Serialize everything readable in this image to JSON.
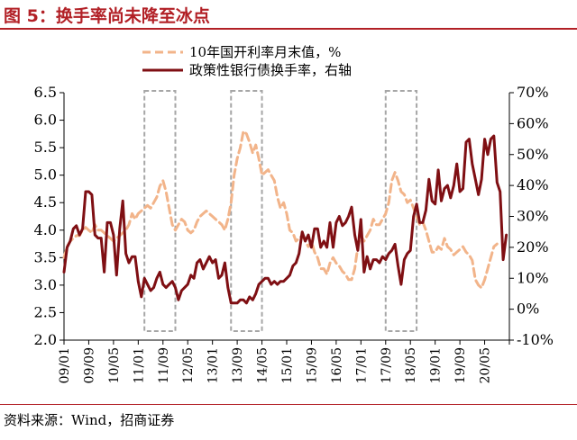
{
  "figure_title": "图 5：换手率尚未降至冰点",
  "source": "资料来源：Wind，招商证券",
  "colors": {
    "bond_yield": "#f2b48a",
    "turnover": "#7f0f13",
    "brand": "#b22026",
    "box": "#a6a6a6"
  },
  "chart_data": {
    "type": "line",
    "title": "",
    "xlabel": "",
    "ylabel_left": "",
    "ylabel_right": "",
    "x_ticks": [
      "09/01",
      "09/09",
      "10/05",
      "11/01",
      "11/09",
      "12/05",
      "13/01",
      "13/09",
      "14/05",
      "15/01",
      "15/09",
      "16/05",
      "17/01",
      "17/09",
      "18/05",
      "19/01",
      "19/09",
      "20/05"
    ],
    "y_left": {
      "min": 2.0,
      "max": 6.5,
      "ticks": [
        "2.0",
        "2.5",
        "3.0",
        "3.5",
        "4.0",
        "4.5",
        "5.0",
        "5.5",
        "6.0",
        "6.5"
      ]
    },
    "y_right": {
      "min": -10,
      "max": 70,
      "ticks": [
        "-10%",
        "0%",
        "10%",
        "20%",
        "30%",
        "40%",
        "50%",
        "60%",
        "70%"
      ]
    },
    "grid": false,
    "legend_position": "top-center",
    "highlight_boxes": [
      {
        "from": "2011-03",
        "to": "2012-01"
      },
      {
        "from": "2013-07",
        "to": "2014-05"
      },
      {
        "from": "2017-09",
        "to": "2018-07"
      }
    ],
    "series": [
      {
        "name": "10年国开利率月末值，%",
        "axis": "left",
        "style": "dashed",
        "points": [
          [
            "2009-01",
            3.5
          ],
          [
            "2009-02",
            3.7
          ],
          [
            "2009-03",
            3.8
          ],
          [
            "2009-04",
            3.85
          ],
          [
            "2009-05",
            3.9
          ],
          [
            "2009-06",
            3.9
          ],
          [
            "2009-07",
            4.0
          ],
          [
            "2009-08",
            4.05
          ],
          [
            "2009-09",
            4.0
          ],
          [
            "2009-10",
            3.95
          ],
          [
            "2009-11",
            4.1
          ],
          [
            "2009-12",
            4.0
          ],
          [
            "2010-01",
            4.0
          ],
          [
            "2010-02",
            3.95
          ],
          [
            "2010-03",
            3.9
          ],
          [
            "2010-04",
            3.85
          ],
          [
            "2010-05",
            3.8
          ],
          [
            "2010-06",
            3.85
          ],
          [
            "2010-07",
            3.9
          ],
          [
            "2010-08",
            3.95
          ],
          [
            "2010-09",
            4.0
          ],
          [
            "2010-10",
            4.1
          ],
          [
            "2010-11",
            4.3
          ],
          [
            "2010-12",
            4.2
          ],
          [
            "2011-01",
            4.3
          ],
          [
            "2011-02",
            4.35
          ],
          [
            "2011-03",
            4.4
          ],
          [
            "2011-04",
            4.45
          ],
          [
            "2011-05",
            4.4
          ],
          [
            "2011-06",
            4.5
          ],
          [
            "2011-07",
            4.6
          ],
          [
            "2011-08",
            4.8
          ],
          [
            "2011-09",
            4.9
          ],
          [
            "2011-10",
            4.7
          ],
          [
            "2011-11",
            4.4
          ],
          [
            "2011-12",
            4.1
          ],
          [
            "2012-01",
            4.0
          ],
          [
            "2012-02",
            4.1
          ],
          [
            "2012-03",
            4.2
          ],
          [
            "2012-04",
            4.15
          ],
          [
            "2012-05",
            4.0
          ],
          [
            "2012-06",
            3.95
          ],
          [
            "2012-07",
            4.0
          ],
          [
            "2012-08",
            4.15
          ],
          [
            "2012-09",
            4.25
          ],
          [
            "2012-10",
            4.3
          ],
          [
            "2012-11",
            4.35
          ],
          [
            "2012-12",
            4.3
          ],
          [
            "2013-01",
            4.25
          ],
          [
            "2013-02",
            4.2
          ],
          [
            "2013-03",
            4.15
          ],
          [
            "2013-04",
            4.1
          ],
          [
            "2013-05",
            4.0
          ],
          [
            "2013-06",
            4.2
          ],
          [
            "2013-07",
            4.5
          ],
          [
            "2013-08",
            5.0
          ],
          [
            "2013-09",
            5.3
          ],
          [
            "2013-10",
            5.5
          ],
          [
            "2013-11",
            5.8
          ],
          [
            "2013-12",
            5.75
          ],
          [
            "2014-01",
            5.6
          ],
          [
            "2014-02",
            5.4
          ],
          [
            "2014-03",
            5.55
          ],
          [
            "2014-04",
            5.3
          ],
          [
            "2014-05",
            5.0
          ],
          [
            "2014-06",
            5.05
          ],
          [
            "2014-07",
            5.1
          ],
          [
            "2014-08",
            5.0
          ],
          [
            "2014-09",
            4.9
          ],
          [
            "2014-10",
            4.6
          ],
          [
            "2014-11",
            4.4
          ],
          [
            "2014-12",
            4.5
          ],
          [
            "2015-01",
            4.3
          ],
          [
            "2015-02",
            4.0
          ],
          [
            "2015-03",
            3.95
          ],
          [
            "2015-04",
            3.8
          ],
          [
            "2015-05",
            3.85
          ],
          [
            "2015-06",
            3.9
          ],
          [
            "2015-07",
            3.8
          ],
          [
            "2015-08",
            3.7
          ],
          [
            "2015-09",
            3.8
          ],
          [
            "2015-10",
            3.6
          ],
          [
            "2015-11",
            3.5
          ],
          [
            "2015-12",
            3.3
          ],
          [
            "2016-01",
            3.3
          ],
          [
            "2016-02",
            3.2
          ],
          [
            "2016-03",
            3.4
          ],
          [
            "2016-04",
            3.5
          ],
          [
            "2016-05",
            3.4
          ],
          [
            "2016-06",
            3.35
          ],
          [
            "2016-07",
            3.25
          ],
          [
            "2016-08",
            3.2
          ],
          [
            "2016-09",
            3.1
          ],
          [
            "2016-10",
            3.1
          ],
          [
            "2016-11",
            3.3
          ],
          [
            "2016-12",
            3.7
          ],
          [
            "2017-01",
            3.9
          ],
          [
            "2017-02",
            3.8
          ],
          [
            "2017-03",
            3.9
          ],
          [
            "2017-04",
            4.0
          ],
          [
            "2017-05",
            4.2
          ],
          [
            "2017-06",
            4.1
          ],
          [
            "2017-07",
            4.1
          ],
          [
            "2017-08",
            4.2
          ],
          [
            "2017-09",
            4.3
          ],
          [
            "2017-10",
            4.5
          ],
          [
            "2017-11",
            4.9
          ],
          [
            "2017-12",
            5.05
          ],
          [
            "2018-01",
            4.9
          ],
          [
            "2018-02",
            4.7
          ],
          [
            "2018-03",
            4.65
          ],
          [
            "2018-04",
            4.5
          ],
          [
            "2018-05",
            4.55
          ],
          [
            "2018-06",
            4.4
          ],
          [
            "2018-07",
            4.25
          ],
          [
            "2018-08",
            4.1
          ],
          [
            "2018-09",
            4.15
          ],
          [
            "2018-10",
            4.0
          ],
          [
            "2018-11",
            3.8
          ],
          [
            "2018-12",
            3.6
          ],
          [
            "2019-01",
            3.6
          ],
          [
            "2019-02",
            3.7
          ],
          [
            "2019-03",
            3.65
          ],
          [
            "2019-04",
            3.85
          ],
          [
            "2019-05",
            3.7
          ],
          [
            "2019-06",
            3.65
          ],
          [
            "2019-07",
            3.55
          ],
          [
            "2019-08",
            3.6
          ],
          [
            "2019-09",
            3.65
          ],
          [
            "2019-10",
            3.7
          ],
          [
            "2019-11",
            3.6
          ],
          [
            "2019-12",
            3.55
          ],
          [
            "2020-01",
            3.45
          ],
          [
            "2020-02",
            3.1
          ],
          [
            "2020-03",
            3.0
          ],
          [
            "2020-04",
            2.95
          ],
          [
            "2020-05",
            3.1
          ],
          [
            "2020-06",
            3.3
          ],
          [
            "2020-07",
            3.5
          ],
          [
            "2020-08",
            3.7
          ],
          [
            "2020-09",
            3.75
          ]
        ]
      },
      {
        "name": "政策性银行债换手率，右轴",
        "axis": "right",
        "style": "solid",
        "points": [
          [
            "2009-01",
            12
          ],
          [
            "2009-02",
            20
          ],
          [
            "2009-03",
            22
          ],
          [
            "2009-04",
            26
          ],
          [
            "2009-05",
            27
          ],
          [
            "2009-06",
            24
          ],
          [
            "2009-07",
            26
          ],
          [
            "2009-08",
            38
          ],
          [
            "2009-09",
            38
          ],
          [
            "2009-10",
            37
          ],
          [
            "2009-11",
            24
          ],
          [
            "2009-12",
            23
          ],
          [
            "2010-01",
            23
          ],
          [
            "2010-02",
            12
          ],
          [
            "2010-03",
            28
          ],
          [
            "2010-04",
            28
          ],
          [
            "2010-05",
            24
          ],
          [
            "2010-06",
            11
          ],
          [
            "2010-07",
            26
          ],
          [
            "2010-08",
            35
          ],
          [
            "2010-09",
            18
          ],
          [
            "2010-10",
            15
          ],
          [
            "2010-11",
            17
          ],
          [
            "2010-12",
            17
          ],
          [
            "2011-01",
            9
          ],
          [
            "2011-02",
            4
          ],
          [
            "2011-03",
            10
          ],
          [
            "2011-04",
            8
          ],
          [
            "2011-05",
            6
          ],
          [
            "2011-06",
            7
          ],
          [
            "2011-07",
            10
          ],
          [
            "2011-08",
            12
          ],
          [
            "2011-09",
            8
          ],
          [
            "2011-10",
            7
          ],
          [
            "2011-11",
            8
          ],
          [
            "2011-12",
            9
          ],
          [
            "2012-01",
            7
          ],
          [
            "2012-02",
            3
          ],
          [
            "2012-03",
            6
          ],
          [
            "2012-04",
            7
          ],
          [
            "2012-05",
            8
          ],
          [
            "2012-06",
            11
          ],
          [
            "2012-07",
            10
          ],
          [
            "2012-08",
            15
          ],
          [
            "2012-09",
            16
          ],
          [
            "2012-10",
            13
          ],
          [
            "2012-11",
            15
          ],
          [
            "2012-12",
            17
          ],
          [
            "2013-01",
            15
          ],
          [
            "2013-02",
            16
          ],
          [
            "2013-03",
            10
          ],
          [
            "2013-04",
            11
          ],
          [
            "2013-05",
            15
          ],
          [
            "2013-06",
            7
          ],
          [
            "2013-07",
            2
          ],
          [
            "2013-08",
            2
          ],
          [
            "2013-09",
            2
          ],
          [
            "2013-10",
            3
          ],
          [
            "2013-11",
            3
          ],
          [
            "2013-12",
            2
          ],
          [
            "2014-01",
            4
          ],
          [
            "2014-02",
            3
          ],
          [
            "2014-03",
            5
          ],
          [
            "2014-04",
            8
          ],
          [
            "2014-05",
            9
          ],
          [
            "2014-06",
            10
          ],
          [
            "2014-07",
            10
          ],
          [
            "2014-08",
            8
          ],
          [
            "2014-09",
            9
          ],
          [
            "2014-10",
            8
          ],
          [
            "2014-11",
            9
          ],
          [
            "2014-12",
            9
          ],
          [
            "2015-01",
            10
          ],
          [
            "2015-02",
            11
          ],
          [
            "2015-03",
            14
          ],
          [
            "2015-04",
            15
          ],
          [
            "2015-05",
            18
          ],
          [
            "2015-06",
            25
          ],
          [
            "2015-07",
            22
          ],
          [
            "2015-08",
            24
          ],
          [
            "2015-09",
            20
          ],
          [
            "2015-10",
            26
          ],
          [
            "2015-11",
            26
          ],
          [
            "2015-12",
            20
          ],
          [
            "2016-01",
            22
          ],
          [
            "2016-02",
            20
          ],
          [
            "2016-03",
            28
          ],
          [
            "2016-04",
            20
          ],
          [
            "2016-05",
            28
          ],
          [
            "2016-06",
            30
          ],
          [
            "2016-07",
            27
          ],
          [
            "2016-08",
            28
          ],
          [
            "2016-09",
            30
          ],
          [
            "2016-10",
            33
          ],
          [
            "2016-11",
            24
          ],
          [
            "2016-12",
            19
          ],
          [
            "2017-01",
            29
          ],
          [
            "2017-02",
            12
          ],
          [
            "2017-03",
            17
          ],
          [
            "2017-04",
            13
          ],
          [
            "2017-05",
            16
          ],
          [
            "2017-06",
            16
          ],
          [
            "2017-07",
            15
          ],
          [
            "2017-08",
            17
          ],
          [
            "2017-09",
            16
          ],
          [
            "2017-10",
            18
          ],
          [
            "2017-11",
            19
          ],
          [
            "2017-12",
            21
          ],
          [
            "2018-01",
            14
          ],
          [
            "2018-02",
            8
          ],
          [
            "2018-03",
            16
          ],
          [
            "2018-04",
            18
          ],
          [
            "2018-05",
            19
          ],
          [
            "2018-06",
            30
          ],
          [
            "2018-07",
            34
          ],
          [
            "2018-08",
            28
          ],
          [
            "2018-09",
            28
          ],
          [
            "2018-10",
            32
          ],
          [
            "2018-11",
            42
          ],
          [
            "2018-12",
            35
          ],
          [
            "2019-01",
            34
          ],
          [
            "2019-02",
            45
          ],
          [
            "2019-03",
            35
          ],
          [
            "2019-04",
            39
          ],
          [
            "2019-05",
            40
          ],
          [
            "2019-06",
            36
          ],
          [
            "2019-07",
            40
          ],
          [
            "2019-08",
            47
          ],
          [
            "2019-09",
            38
          ],
          [
            "2019-10",
            39
          ],
          [
            "2019-11",
            54
          ],
          [
            "2019-12",
            55
          ],
          [
            "2020-01",
            47
          ],
          [
            "2020-02",
            42
          ],
          [
            "2020-03",
            37
          ],
          [
            "2020-04",
            42
          ],
          [
            "2020-05",
            55
          ],
          [
            "2020-06",
            50
          ],
          [
            "2020-07",
            55
          ],
          [
            "2020-08",
            56
          ],
          [
            "2020-09",
            41
          ],
          [
            "2020-10",
            38
          ],
          [
            "2020-11",
            16
          ],
          [
            "2020-12",
            24
          ]
        ]
      }
    ]
  }
}
